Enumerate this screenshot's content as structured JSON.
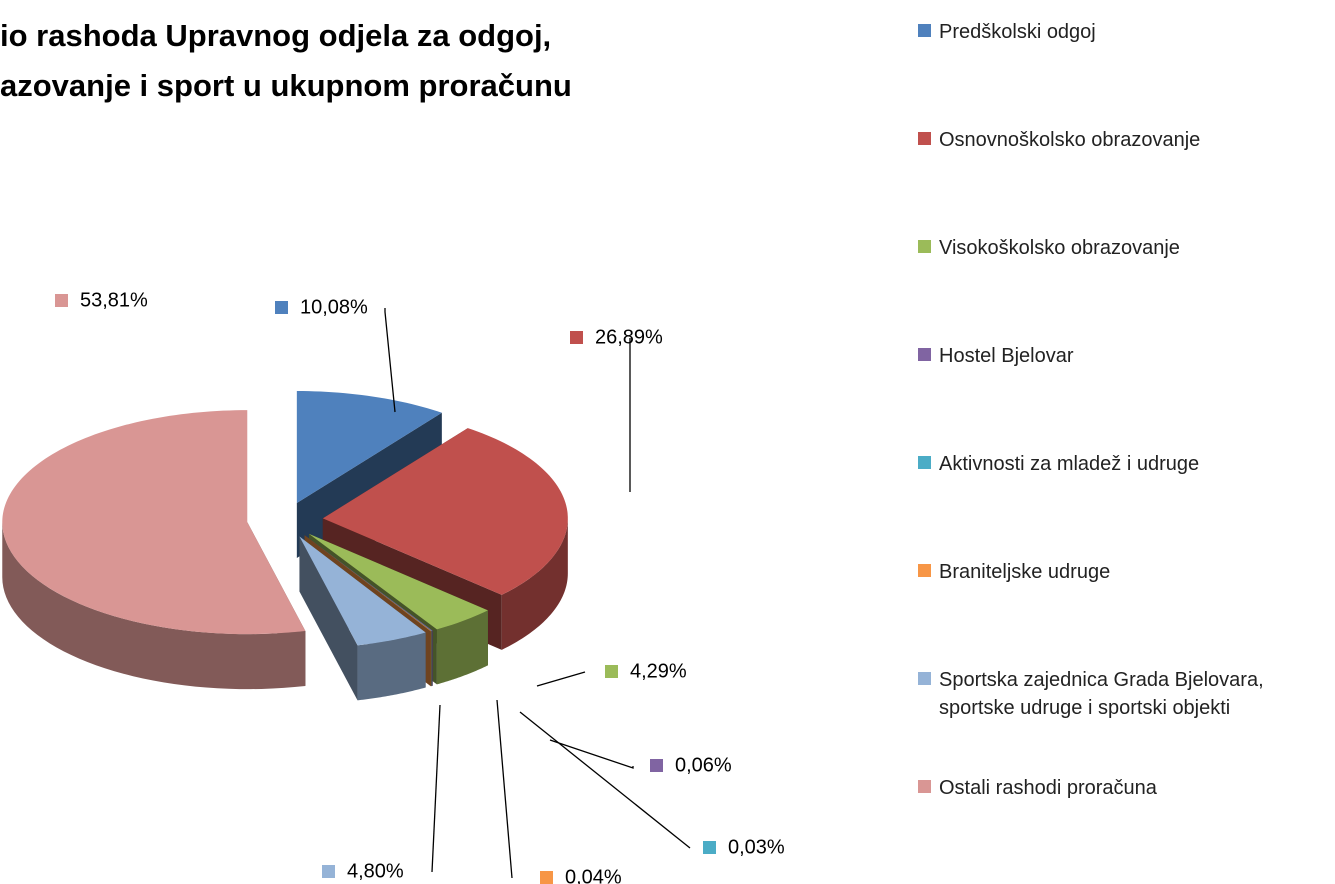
{
  "chart_data": {
    "type": "pie",
    "title": [
      "io rashoda  Upravnog odjela za odgoj,",
      "azovanje i sport u ukupnom proračunu"
    ],
    "categories": [
      "Predškolski odgoj",
      "Osnovnoškolsko obrazovanje",
      "Visokoškolsko obrazovanje",
      "Hostel Bjelovar",
      "Aktivnosti za mladež i udruge",
      "Braniteljske udruge",
      "Sportska zajednica Grada Bjelovara, sportske udruge i sportski objekti",
      "Ostali rashodi proračuna"
    ],
    "values": [
      10.08,
      26.89,
      4.29,
      0.06,
      0.03,
      0.04,
      4.8,
      53.81
    ],
    "value_labels": [
      "10,08%",
      "26,89%",
      "4,29%",
      "0,06%",
      "0,03%",
      "0,04%",
      "4,80%",
      "53,81%"
    ],
    "colors": [
      "#4f81bd",
      "#c0504d",
      "#9bbb59",
      "#8064a2",
      "#4bacc6",
      "#f79646",
      "#95b3d7",
      "#d99694"
    ],
    "legend": "right"
  }
}
